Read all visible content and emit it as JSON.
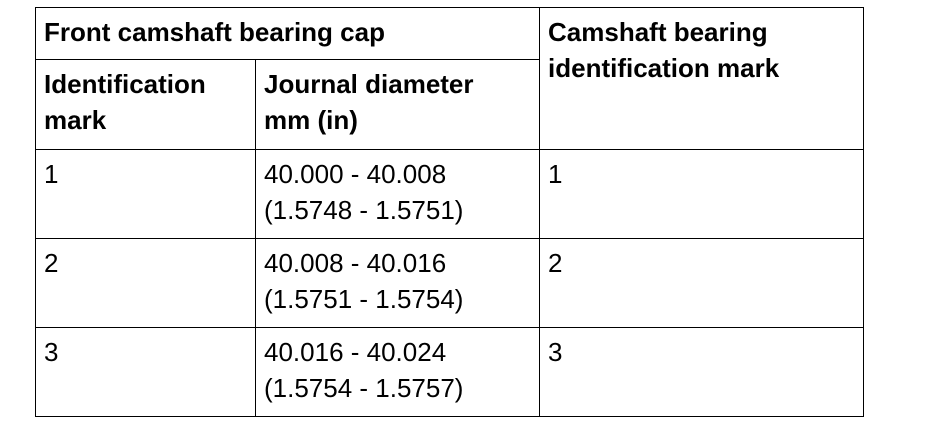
{
  "table": {
    "header": {
      "group_label": "Front camshaft bearing cap",
      "right_label_line1": "Camshaft bearing",
      "right_label_line2": "identification mark",
      "col1_line1": "Identification",
      "col1_line2": "mark",
      "col2_line1": "Journal diameter",
      "col2_line2": "mm (in)"
    },
    "rows": [
      {
        "mark": "1",
        "diameter_mm": "40.000 - 40.008",
        "diameter_in": "(1.5748 - 1.5751)",
        "bearing_mark": "1"
      },
      {
        "mark": "2",
        "diameter_mm": "40.008 - 40.016",
        "diameter_in": "(1.5751 - 1.5754)",
        "bearing_mark": "2"
      },
      {
        "mark": "3",
        "diameter_mm": "40.016 - 40.024",
        "diameter_in": "(1.5754 - 1.5757)",
        "bearing_mark": "3"
      }
    ]
  }
}
